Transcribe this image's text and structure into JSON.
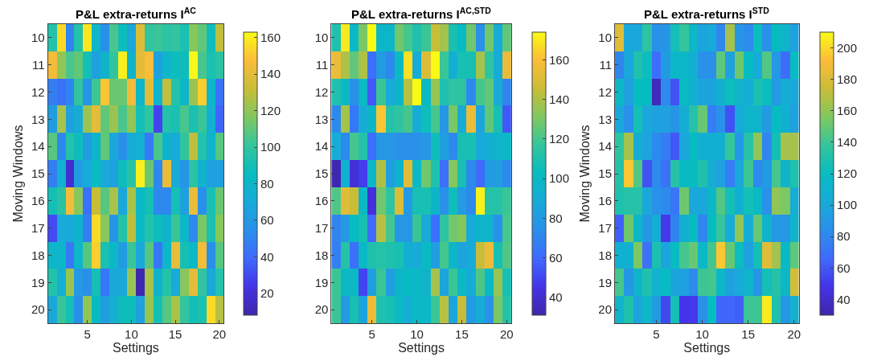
{
  "chart_data": [
    {
      "type": "heatmap",
      "title": "P&L extra-returns I$^{AC}$",
      "xlabel": "Settings",
      "ylabel": "Moving Windows",
      "x": [
        1,
        2,
        3,
        4,
        5,
        6,
        7,
        8,
        9,
        10,
        11,
        12,
        13,
        14,
        15,
        16,
        17,
        18,
        19,
        20
      ],
      "xlim": [
        0.5,
        20.5
      ],
      "xticks": [
        5,
        10,
        15,
        20
      ],
      "y_categories": [
        "10",
        "11",
        "12",
        "13",
        "14",
        "15",
        "16",
        "17",
        "18",
        "19",
        "20"
      ],
      "clim": [
        8,
        163
      ],
      "cticks": [
        20,
        40,
        60,
        80,
        100,
        120,
        140,
        160
      ],
      "cells": [
        [
          95,
          155,
          50,
          95,
          158,
          80,
          55,
          105,
          88,
          68,
          138,
          100,
          102,
          98,
          100,
          92,
          118,
          110,
          88,
          130
        ],
        [
          145,
          120,
          105,
          110,
          90,
          65,
          78,
          100,
          160,
          78,
          140,
          148,
          65,
          80,
          88,
          88,
          162,
          105,
          92,
          98
        ],
        [
          48,
          42,
          50,
          100,
          58,
          103,
          150,
          112,
          112,
          145,
          80,
          140,
          78,
          130,
          95,
          80,
          122,
          152,
          80,
          42
        ],
        [
          62,
          125,
          65,
          72,
          122,
          140,
          110,
          122,
          105,
          120,
          90,
          100,
          28,
          95,
          92,
          105,
          92,
          102,
          75,
          38
        ],
        [
          108,
          52,
          95,
          88,
          62,
          78,
          110,
          68,
          55,
          70,
          75,
          45,
          105,
          78,
          70,
          100,
          130,
          95,
          78,
          108
        ],
        [
          48,
          75,
          18,
          62,
          70,
          85,
          70,
          65,
          88,
          97,
          160,
          112,
          52,
          142,
          70,
          58,
          98,
          78,
          65,
          65
        ],
        [
          90,
          98,
          145,
          118,
          42,
          132,
          108,
          125,
          68,
          125,
          82,
          90,
          52,
          52,
          90,
          65,
          142,
          55,
          92,
          112
        ],
        [
          30,
          70,
          70,
          78,
          48,
          155,
          118,
          58,
          95,
          130,
          82,
          95,
          88,
          78,
          102,
          80,
          52,
          115,
          92,
          118
        ],
        [
          80,
          80,
          45,
          80,
          108,
          152,
          92,
          82,
          62,
          102,
          68,
          108,
          45,
          80,
          142,
          90,
          82,
          145,
          55,
          108
        ],
        [
          95,
          75,
          122,
          60,
          55,
          90,
          45,
          68,
          68,
          122,
          10,
          125,
          78,
          95,
          70,
          118,
          140,
          100,
          68,
          95
        ],
        [
          68,
          102,
          90,
          55,
          120,
          85,
          62,
          75,
          88,
          88,
          65,
          122,
          90,
          108,
          125,
          100,
          90,
          92,
          155,
          128
        ]
      ]
    },
    {
      "type": "heatmap",
      "title": "P&L extra-returns I$^{AC,STD}$",
      "xlabel": "Settings",
      "x": [
        1,
        2,
        3,
        4,
        5,
        6,
        7,
        8,
        9,
        10,
        11,
        12,
        13,
        14,
        15,
        16,
        17,
        18,
        19,
        20
      ],
      "xlim": [
        0.5,
        20.5
      ],
      "xticks": [
        5,
        10,
        15,
        20
      ],
      "y_categories": [
        "10",
        "11",
        "12",
        "13",
        "14",
        "15",
        "16",
        "17",
        "18",
        "19",
        "20"
      ],
      "clim": [
        31,
        174
      ],
      "cticks": [
        40,
        60,
        80,
        100,
        120,
        140,
        160
      ],
      "cells": [
        [
          110,
          170,
          100,
          130,
          174,
          98,
          98,
          128,
          120,
          110,
          118,
          145,
          138,
          108,
          102,
          128,
          75,
          128,
          90,
          125
        ],
        [
          155,
          140,
          125,
          140,
          62,
          80,
          72,
          102,
          168,
          90,
          150,
          174,
          118,
          92,
          108,
          108,
          138,
          115,
          90,
          155
        ],
        [
          110,
          100,
          75,
          100,
          55,
          118,
          88,
          98,
          142,
          174,
          100,
          135,
          110,
          115,
          115,
          72,
          120,
          125,
          90,
          70
        ],
        [
          72,
          138,
          65,
          90,
          98,
          162,
          112,
          115,
          120,
          90,
          105,
          120,
          78,
          130,
          90,
          155,
          85,
          125,
          108,
          55
        ],
        [
          90,
          72,
          120,
          112,
          62,
          78,
          78,
          75,
          75,
          75,
          78,
          105,
          82,
          72,
          108,
          108,
          88,
          92,
          96,
          100
        ],
        [
          33,
          92,
          42,
          48,
          98,
          140,
          82,
          95,
          152,
          100,
          128,
          110,
          62,
          132,
          108,
          72,
          60,
          80,
          82,
          72
        ],
        [
          122,
          152,
          145,
          100,
          42,
          128,
          115,
          150,
          80,
          108,
          108,
          98,
          75,
          105,
          80,
          72,
          172,
          112,
          112,
          118
        ],
        [
          70,
          80,
          102,
          108,
          60,
          142,
          120,
          78,
          78,
          118,
          88,
          62,
          115,
          128,
          132,
          88,
          98,
          96,
          75,
          120
        ],
        [
          68,
          112,
          62,
          100,
          110,
          112,
          110,
          108,
          92,
          88,
          102,
          82,
          120,
          98,
          85,
          88,
          145,
          155,
          108,
          122
        ],
        [
          118,
          100,
          100,
          50,
          82,
          118,
          82,
          98,
          102,
          100,
          96,
          138,
          85,
          118,
          100,
          90,
          122,
          100,
          135,
          108
        ],
        [
          118,
          80,
          108,
          85,
          155,
          110,
          108,
          100,
          92,
          100,
          100,
          118,
          142,
          85,
          145,
          80,
          90,
          75,
          130,
          112
        ]
      ]
    },
    {
      "type": "heatmap",
      "title": "P&L extra-returns I$^{STD}$",
      "xlabel": "Settings",
      "ylabel": "Moving Windows",
      "x": [
        1,
        2,
        3,
        4,
        5,
        6,
        7,
        8,
        9,
        10,
        11,
        12,
        13,
        14,
        15,
        16,
        17,
        18,
        19,
        20
      ],
      "xlim": [
        0.5,
        20.5
      ],
      "xticks": [
        5,
        10,
        15,
        20
      ],
      "y_categories": [
        "10",
        "11",
        "12",
        "13",
        "14",
        "15",
        "16",
        "17",
        "18",
        "19",
        "20"
      ],
      "clim": [
        30,
        210
      ],
      "cticks": [
        40,
        60,
        80,
        100,
        120,
        140,
        160,
        180,
        200
      ],
      "cells": [
        [
          182,
          100,
          100,
          135,
          85,
          88,
          125,
          138,
          115,
          98,
          102,
          80,
          165,
          88,
          82,
          122,
          85,
          120,
          112,
          95
        ],
        [
          80,
          100,
          130,
          122,
          68,
          92,
          115,
          115,
          108,
          85,
          85,
          148,
          95,
          152,
          120,
          102,
          145,
          90,
          68,
          120
        ],
        [
          115,
          95,
          120,
          120,
          35,
          82,
          58,
          120,
          108,
          98,
          98,
          108,
          122,
          112,
          105,
          128,
          122,
          92,
          105,
          100
        ],
        [
          100,
          85,
          125,
          100,
          95,
          95,
          88,
          105,
          132,
          150,
          75,
          85,
          58,
          102,
          112,
          112,
          92,
          120,
          108,
          95
        ],
        [
          135,
          165,
          105,
          98,
          82,
          75,
          60,
          100,
          120,
          108,
          108,
          108,
          138,
          90,
          132,
          160,
          80,
          125,
          165,
          165
        ],
        [
          132,
          195,
          145,
          58,
          82,
          70,
          132,
          118,
          120,
          130,
          105,
          95,
          75,
          100,
          140,
          82,
          92,
          142,
          112,
          130
        ],
        [
          130,
          132,
          132,
          100,
          85,
          82,
          72,
          152,
          100,
          100,
          115,
          145,
          125,
          108,
          125,
          118,
          85,
          160,
          155,
          105
        ],
        [
          62,
          152,
          115,
          90,
          105,
          50,
          78,
          108,
          120,
          80,
          120,
          138,
          102,
          160,
          105,
          150,
          112,
          90,
          90,
          112
        ],
        [
          108,
          108,
          155,
          70,
          128,
          98,
          120,
          142,
          150,
          115,
          142,
          195,
          150,
          122,
          95,
          125,
          182,
          165,
          118,
          148
        ],
        [
          142,
          90,
          112,
          130,
          110,
          120,
          98,
          95,
          82,
          140,
          142,
          115,
          95,
          102,
          112,
          88,
          125,
          132,
          115,
          178
        ],
        [
          112,
          130,
          98,
          115,
          92,
          55,
          125,
          48,
          50,
          85,
          120,
          65,
          65,
          62,
          140,
          140,
          205,
          130,
          90,
          108
        ]
      ]
    }
  ]
}
